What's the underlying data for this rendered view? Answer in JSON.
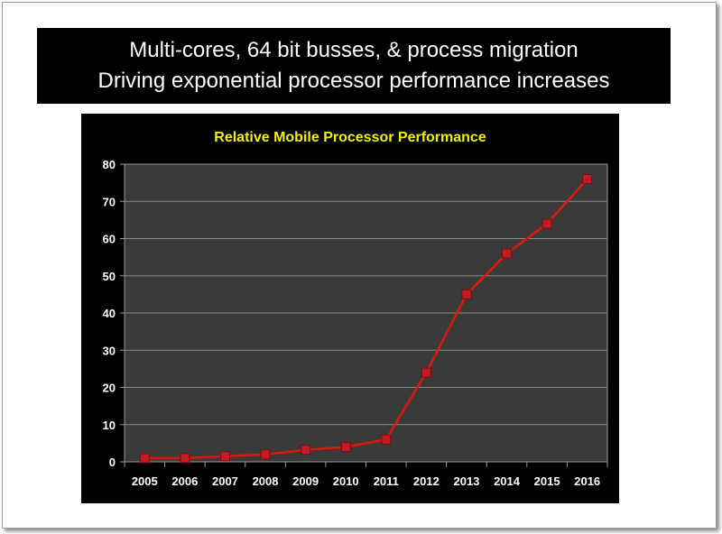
{
  "banner": {
    "line1": "Multi-cores, 64 bit busses, & process migration",
    "line2": "Driving exponential processor performance increases"
  },
  "colors": {
    "banner_bg": "#000000",
    "chart_bg": "#000000",
    "plot_bg": "#3a3a3a",
    "gridline": "#8a8a8a",
    "title_color": "#f2f200",
    "series_color": "#e0180c",
    "marker_fill": "#c41a22",
    "tick_label_color": "#ffffff"
  },
  "chart_data": {
    "type": "line",
    "title": "Relative Mobile Processor Performance",
    "xlabel": "",
    "ylabel": "",
    "categories": [
      "2005",
      "2006",
      "2007",
      "2008",
      "2009",
      "2010",
      "2011",
      "2012",
      "2013",
      "2014",
      "2015",
      "2016"
    ],
    "series": [
      {
        "values": [
          1,
          1,
          1.5,
          2,
          3.2,
          4,
          6,
          24,
          45,
          56,
          64,
          76
        ]
      }
    ],
    "ylim": [
      0,
      80
    ],
    "yticks": [
      0,
      10,
      20,
      30,
      40,
      50,
      60,
      70,
      80
    ],
    "grid": true,
    "legend": "none",
    "marker": "square"
  }
}
